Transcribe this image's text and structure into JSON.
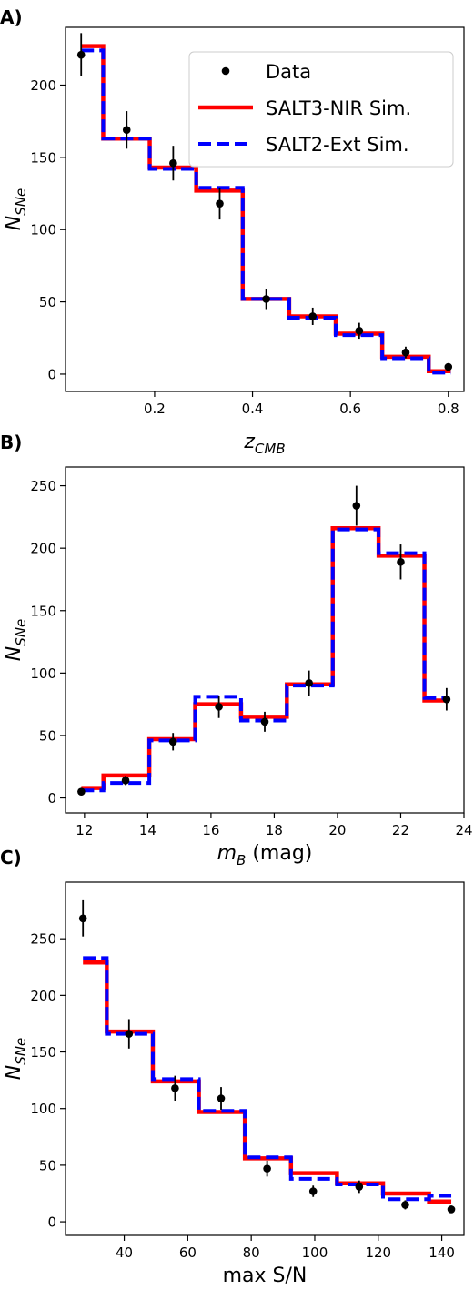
{
  "legend": {
    "entries": [
      {
        "label": "Data",
        "kind": "marker",
        "color": "#000000"
      },
      {
        "label": "SALT3-NIR Sim.",
        "kind": "solid",
        "color": "#ff0000"
      },
      {
        "label": "SALT2-Ext Sim.",
        "kind": "dashed",
        "color": "#0000ff"
      }
    ],
    "placement": "top-right"
  },
  "chart_data": [
    {
      "panel": "A)",
      "type": "line",
      "xlabel_main": "z",
      "xlabel_sub": "CMB",
      "xlabel_suffix": "",
      "ylabel_main": "N",
      "ylabel_sub": "SNe",
      "xlim": [
        0.018,
        0.832
      ],
      "ylim": [
        -12,
        240
      ],
      "xticks": [
        0.2,
        0.4,
        0.6,
        0.8
      ],
      "xtick_labels": [
        "0.2",
        "0.4",
        "0.6",
        "0.8"
      ],
      "yticks": [
        0,
        50,
        100,
        150,
        200
      ],
      "ytick_labels": [
        "0",
        "50",
        "100",
        "150",
        "200"
      ],
      "bin_edges": [
        0.05,
        0.095,
        0.19,
        0.285,
        0.38,
        0.475,
        0.57,
        0.665,
        0.76,
        0.805
      ],
      "series": [
        {
          "name": "SALT3-NIR Sim.",
          "style": "step",
          "values": [
            227,
            163,
            143,
            127,
            52,
            40,
            28,
            12,
            2
          ]
        },
        {
          "name": "SALT2-Ext Sim.",
          "style": "step",
          "values": [
            224,
            163,
            142,
            129,
            52,
            39,
            27,
            11,
            1
          ]
        },
        {
          "name": "Data",
          "style": "errorbar",
          "x": [
            0.05,
            0.143,
            0.238,
            0.333,
            0.428,
            0.523,
            0.618,
            0.713,
            0.8
          ],
          "y": [
            221,
            169,
            146,
            118,
            52,
            40,
            30,
            15,
            5
          ],
          "yerr": [
            15,
            13,
            12,
            11,
            7,
            6,
            5.5,
            4,
            2.2
          ]
        }
      ],
      "grid": false
    },
    {
      "panel": "B)",
      "type": "line",
      "xlabel_main": "m",
      "xlabel_sub": "B",
      "xlabel_suffix": " (mag)",
      "ylabel_main": "N",
      "ylabel_sub": "SNe",
      "xlim": [
        11.4,
        24.0
      ],
      "ylim": [
        -12,
        265
      ],
      "xticks": [
        12,
        14,
        16,
        18,
        20,
        22,
        24
      ],
      "xtick_labels": [
        "12",
        "14",
        "16",
        "18",
        "20",
        "22",
        "24"
      ],
      "yticks": [
        0,
        50,
        100,
        150,
        200,
        250
      ],
      "ytick_labels": [
        "0",
        "50",
        "100",
        "150",
        "200",
        "250"
      ],
      "bin_edges": [
        11.9,
        12.6,
        14.05,
        15.5,
        16.95,
        18.4,
        19.85,
        21.3,
        22.75,
        23.45
      ],
      "series": [
        {
          "name": "SALT3-NIR Sim.",
          "style": "step",
          "values": [
            8,
            18,
            47,
            75,
            65,
            91,
            216,
            194,
            78
          ]
        },
        {
          "name": "SALT2-Ext Sim.",
          "style": "step",
          "values": [
            6,
            12,
            46,
            81,
            62,
            90,
            215,
            196,
            80
          ]
        },
        {
          "name": "Data",
          "style": "errorbar",
          "x": [
            11.9,
            13.3,
            14.8,
            16.25,
            17.7,
            19.1,
            20.6,
            22.0,
            23.45
          ],
          "y": [
            5,
            14,
            45,
            73,
            61,
            92,
            234,
            189,
            79
          ],
          "yerr": [
            2.2,
            3.7,
            7,
            9,
            8,
            10,
            16,
            14,
            9
          ]
        }
      ],
      "grid": false
    },
    {
      "panel": "C)",
      "type": "line",
      "xlabel_main": "max S/N",
      "xlabel_sub": "",
      "xlabel_suffix": "",
      "ylabel_main": "N",
      "ylabel_sub": "SNe",
      "xlim": [
        21.5,
        147
      ],
      "ylim": [
        -12,
        300
      ],
      "xticks": [
        40,
        60,
        80,
        100,
        120,
        140
      ],
      "xtick_labels": [
        "40",
        "60",
        "80",
        "100",
        "120",
        "140"
      ],
      "yticks": [
        0,
        50,
        100,
        150,
        200,
        250
      ],
      "ytick_labels": [
        "0",
        "50",
        "100",
        "150",
        "200",
        "250"
      ],
      "bin_edges": [
        27,
        34.5,
        49,
        63.5,
        78,
        92.5,
        107,
        121.5,
        136,
        143
      ],
      "series": [
        {
          "name": "SALT3-NIR Sim.",
          "style": "step",
          "values": [
            229,
            168,
            124,
            97,
            56,
            43,
            34,
            25,
            18
          ]
        },
        {
          "name": "SALT2-Ext Sim.",
          "style": "step",
          "values": [
            233,
            166,
            126,
            98,
            57,
            38,
            33,
            20,
            23
          ]
        },
        {
          "name": "Data",
          "style": "errorbar",
          "x": [
            27,
            41.5,
            56,
            70.5,
            85,
            99.5,
            114,
            128.5,
            143
          ],
          "y": [
            268,
            166,
            118,
            109,
            47,
            27,
            31,
            15,
            11
          ],
          "yerr": [
            16,
            13,
            11,
            10,
            7,
            5,
            5.5,
            4,
            3.3
          ]
        }
      ],
      "grid": false
    }
  ]
}
